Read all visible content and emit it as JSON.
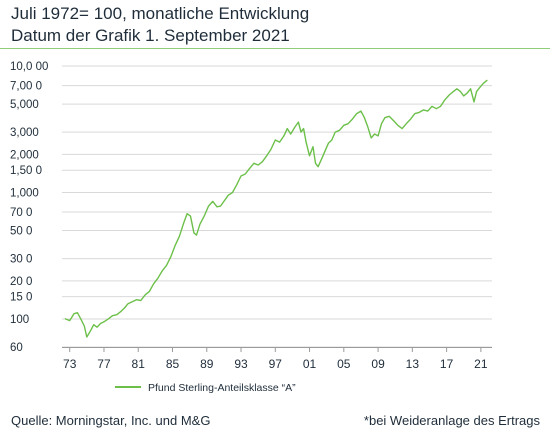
{
  "header": {
    "line1": "Juli 1972= 100, monatliche Entwicklung",
    "line2": "Datum der Grafik 1. September 2021"
  },
  "footer": {
    "source": "Quelle: Morningstar, Inc. und M&G",
    "note": "*bei Weideranlage des Ertrags"
  },
  "colors": {
    "series": "#6cc04a",
    "rule": "#8fce78",
    "grid": "#d9d9d9",
    "text": "#1f2d3a"
  },
  "chart_data": {
    "type": "line",
    "yscale": "log",
    "xlim": [
      1972,
      2022
    ],
    "ylim": [
      60,
      10000
    ],
    "grid": "horizontal",
    "legend_position": "bottom-left",
    "x_tick_labels": [
      "73",
      "77",
      "81",
      "85",
      "89",
      "93",
      "97",
      "01",
      "05",
      "09",
      "13",
      "17",
      "21"
    ],
    "x_tick_values": [
      1973,
      1977,
      1981,
      1985,
      1989,
      1993,
      1997,
      2001,
      2005,
      2009,
      2013,
      2017,
      2021
    ],
    "y_tick_labels": [
      "10,0 00",
      "7,00 0",
      "5,000",
      "3,000",
      "2,000",
      "1,50 0",
      "1,000",
      "70 0",
      "50 0",
      "30 0",
      "20 0",
      "15 0",
      "100",
      "60"
    ],
    "y_tick_values": [
      10000,
      7000,
      5000,
      3000,
      2000,
      1500,
      1000,
      700,
      500,
      300,
      200,
      150,
      100,
      60
    ],
    "series": [
      {
        "name": "Pfund Sterling-Anteilsklasse “A”",
        "x": [
          1972.5,
          1973.0,
          1973.5,
          1973.9,
          1974.3,
          1974.7,
          1975.0,
          1975.4,
          1975.8,
          1976.2,
          1976.6,
          1977.0,
          1977.5,
          1978.0,
          1978.5,
          1979.0,
          1979.4,
          1979.8,
          1980.3,
          1980.8,
          1981.3,
          1981.8,
          1982.3,
          1982.8,
          1983.3,
          1983.8,
          1984.3,
          1984.8,
          1985.3,
          1985.8,
          1986.3,
          1986.7,
          1987.1,
          1987.5,
          1987.8,
          1988.2,
          1988.7,
          1989.2,
          1989.7,
          1990.2,
          1990.6,
          1991.0,
          1991.5,
          1992.0,
          1992.5,
          1993.0,
          1993.5,
          1994.0,
          1994.5,
          1995.0,
          1995.5,
          1996.0,
          1996.5,
          1997.0,
          1997.5,
          1998.0,
          1998.4,
          1998.8,
          1999.3,
          1999.7,
          2000.0,
          2000.3,
          2000.6,
          2001.0,
          2001.4,
          2001.7,
          2002.0,
          2002.5,
          2002.9,
          2003.2,
          2003.6,
          2004.0,
          2004.5,
          2005.0,
          2005.5,
          2006.0,
          2006.5,
          2007.0,
          2007.4,
          2007.8,
          2008.2,
          2008.6,
          2009.0,
          2009.4,
          2009.8,
          2010.3,
          2010.8,
          2011.3,
          2011.8,
          2012.3,
          2012.8,
          2013.3,
          2013.8,
          2014.3,
          2014.8,
          2015.3,
          2015.8,
          2016.3,
          2016.8,
          2017.3,
          2017.8,
          2018.2,
          2018.6,
          2019.0,
          2019.4,
          2019.8,
          2020.2,
          2020.5,
          2020.9,
          2021.3,
          2021.7
        ],
        "values": [
          100,
          97,
          110,
          112,
          100,
          88,
          72,
          80,
          90,
          86,
          92,
          95,
          100,
          106,
          108,
          115,
          122,
          132,
          137,
          142,
          140,
          155,
          165,
          190,
          210,
          240,
          265,
          310,
          380,
          450,
          570,
          680,
          650,
          480,
          460,
          560,
          650,
          780,
          850,
          770,
          780,
          850,
          950,
          1000,
          1150,
          1350,
          1400,
          1550,
          1700,
          1650,
          1750,
          1950,
          2200,
          2600,
          2500,
          2800,
          3200,
          2900,
          3300,
          3600,
          3000,
          3200,
          2500,
          1950,
          2300,
          1700,
          1600,
          1900,
          2200,
          2450,
          2600,
          3000,
          3100,
          3400,
          3500,
          3800,
          4200,
          4400,
          3900,
          3300,
          2700,
          2900,
          2800,
          3500,
          3900,
          4000,
          3700,
          3400,
          3200,
          3500,
          3800,
          4200,
          4300,
          4500,
          4400,
          4800,
          4600,
          4800,
          5400,
          5900,
          6300,
          6600,
          6300,
          5800,
          6100,
          6600,
          5200,
          6300,
          6800,
          7300,
          7700
        ]
      }
    ]
  }
}
